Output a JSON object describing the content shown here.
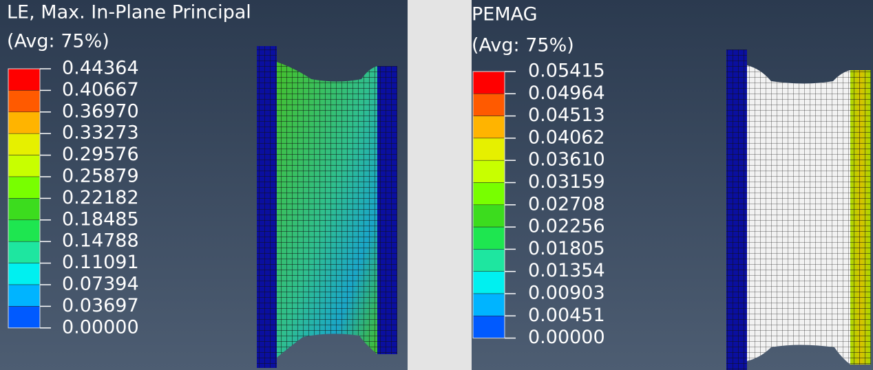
{
  "panels": [
    {
      "title": "LE, Max. In-Plane Principal",
      "subtitle": "(Avg: 75%)",
      "legend": [
        "0.44364",
        "0.40667",
        "0.36970",
        "0.33273",
        "0.29576",
        "0.25879",
        "0.22182",
        "0.18485",
        "0.14788",
        "0.11091",
        "0.07394",
        "0.03697",
        "0.00000"
      ]
    },
    {
      "title": "PEMAG",
      "subtitle": "(Avg: 75%)",
      "legend": [
        "0.05415",
        "0.04964",
        "0.04513",
        "0.04062",
        "0.03610",
        "0.03159",
        "0.02708",
        "0.02256",
        "0.01805",
        "0.01354",
        "0.00903",
        "0.00451",
        "0.00000"
      ]
    }
  ]
}
